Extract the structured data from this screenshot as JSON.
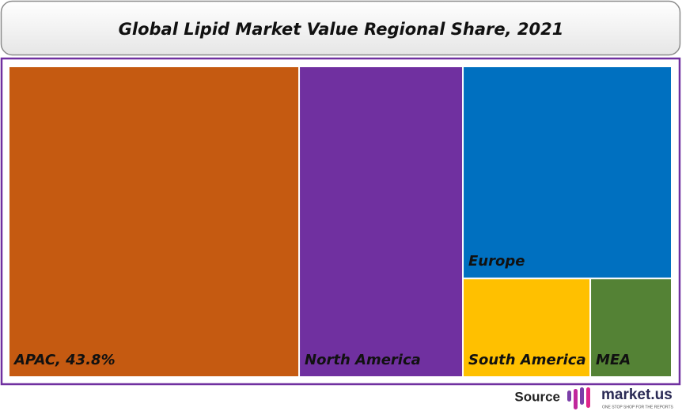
{
  "chart_data": {
    "type": "treemap",
    "title": "Global Lipid Market Value Regional Share, 2021",
    "categories": [
      "APAC, 43.8%",
      "North America",
      "Europe",
      "South America",
      "MEA"
    ],
    "values": [
      43.8,
      24.7,
      21.5,
      6.1,
      3.9
    ],
    "colors": [
      "#c55a11",
      "#7030a0",
      "#0070c0",
      "#ffc000",
      "#548235"
    ]
  },
  "footer": {
    "source": "Source",
    "brand": "market.us",
    "tagline": "ONE STOP SHOP FOR THE REPORTS"
  }
}
